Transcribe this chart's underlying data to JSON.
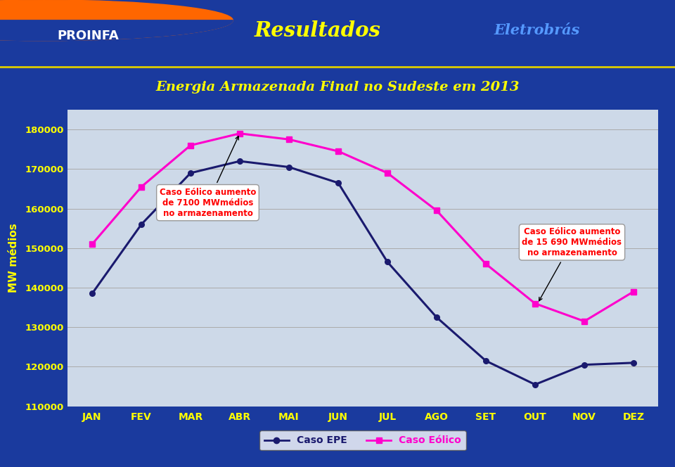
{
  "title": "Energia Armazenada Final no Sudeste em 2013",
  "header_title": "Resultados",
  "ylabel": "MW médios",
  "months": [
    "JAN",
    "FEV",
    "MAR",
    "ABR",
    "MAI",
    "JUN",
    "JUL",
    "AGO",
    "SET",
    "OUT",
    "NOV",
    "DEZ"
  ],
  "caso_epe": [
    138500,
    156000,
    169000,
    172000,
    170500,
    166500,
    146500,
    132500,
    121500,
    115500,
    120500,
    121000
  ],
  "caso_eolico": [
    151000,
    165500,
    176000,
    179000,
    177500,
    174500,
    169000,
    159500,
    146000,
    136000,
    131500,
    139000
  ],
  "epe_color": "#1a1a6e",
  "eolico_color": "#ff00cc",
  "background_color": "#1a3a9e",
  "plot_bg_color": "#cdd9e8",
  "grid_color": "#aaaaaa",
  "title_color": "#ffff00",
  "header_color": "#ffff00",
  "eletrobras_color": "#5599ff",
  "ylabel_color": "#ffff00",
  "tick_color": "#ffff00",
  "ylim": [
    110000,
    185000
  ],
  "yticks": [
    110000,
    120000,
    130000,
    140000,
    150000,
    160000,
    170000,
    180000
  ],
  "annotation1_text": "Caso Eólico aumento\nde 7100 MWmédios\nno armazenamento",
  "annotation2_text": "Caso Eólico aumento\nde 15 690 MWmédios\nno armazenamento",
  "legend_epe": "Caso EPE",
  "legend_eolico": "Caso Eólico"
}
